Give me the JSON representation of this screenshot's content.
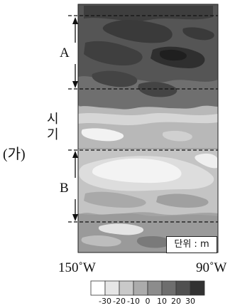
{
  "figure": {
    "panel_label": "(가)",
    "y_axis_label_chars": [
      "시",
      "기"
    ],
    "periods": [
      {
        "label": "A"
      },
      {
        "label": "B"
      }
    ],
    "x_axis": {
      "left_label": "150˚W",
      "right_label": "90˚W"
    },
    "unit_label": "단위 : m"
  },
  "legend": {
    "ticks": [
      "-30",
      "-20",
      "-10",
      "0",
      "10",
      "20",
      "30"
    ],
    "bin_colors": [
      "#ffffff",
      "#e6e6e6",
      "#c9c9c9",
      "#ababab",
      "#8c8c8c",
      "#6e6e6e",
      "#505050",
      "#323232"
    ]
  }
}
